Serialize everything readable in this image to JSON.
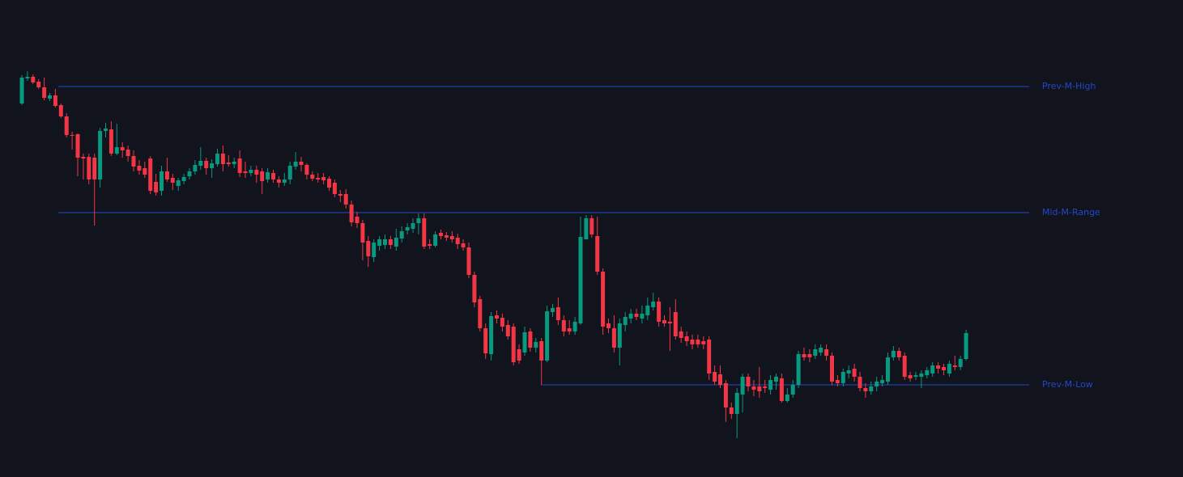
{
  "chart_data": {
    "type": "candlestick",
    "up_color": "#089981",
    "down_color": "#f23645",
    "ylim": [
      0,
      590
    ],
    "ohlc": [
      [
        462,
        497,
        460,
        494
      ],
      [
        493,
        502,
        490,
        495
      ],
      [
        495,
        498,
        486,
        488
      ],
      [
        489,
        492,
        480,
        482
      ],
      [
        482,
        494,
        466,
        469
      ],
      [
        468,
        475,
        465,
        472
      ],
      [
        472,
        480,
        457,
        459
      ],
      [
        460,
        462,
        444,
        446
      ],
      [
        446,
        450,
        420,
        423
      ],
      [
        423,
        427,
        405,
        422
      ],
      [
        424,
        425,
        372,
        395
      ],
      [
        396,
        400,
        368,
        394
      ],
      [
        396,
        400,
        362,
        368
      ],
      [
        395,
        400,
        311,
        368
      ],
      [
        368,
        432,
        358,
        428
      ],
      [
        428,
        438,
        420,
        431
      ],
      [
        430,
        440,
        397,
        400
      ],
      [
        400,
        437,
        398,
        408
      ],
      [
        408,
        414,
        395,
        404
      ],
      [
        405,
        410,
        390,
        397
      ],
      [
        397,
        404,
        378,
        384
      ],
      [
        385,
        392,
        374,
        379
      ],
      [
        382,
        390,
        370,
        374
      ],
      [
        394,
        397,
        350,
        354
      ],
      [
        365,
        375,
        348,
        352
      ],
      [
        354,
        385,
        348,
        378
      ],
      [
        378,
        395,
        365,
        368
      ],
      [
        370,
        375,
        355,
        364
      ],
      [
        360,
        370,
        354,
        367
      ],
      [
        366,
        375,
        362,
        371
      ],
      [
        372,
        382,
        368,
        378
      ],
      [
        378,
        392,
        374,
        386
      ],
      [
        385,
        408,
        380,
        391
      ],
      [
        391,
        395,
        374,
        382
      ],
      [
        382,
        393,
        370,
        388
      ],
      [
        387,
        406,
        384,
        400
      ],
      [
        400,
        410,
        378,
        387
      ],
      [
        389,
        398,
        384,
        387
      ],
      [
        387,
        395,
        382,
        390
      ],
      [
        394,
        404,
        371,
        376
      ],
      [
        378,
        390,
        370,
        376
      ],
      [
        376,
        385,
        372,
        380
      ],
      [
        380,
        385,
        364,
        374
      ],
      [
        378,
        382,
        350,
        366
      ],
      [
        368,
        382,
        364,
        377
      ],
      [
        376,
        380,
        364,
        368
      ],
      [
        368,
        372,
        358,
        364
      ],
      [
        364,
        376,
        360,
        368
      ],
      [
        368,
        390,
        362,
        385
      ],
      [
        384,
        402,
        380,
        390
      ],
      [
        390,
        396,
        378,
        386
      ],
      [
        386,
        388,
        368,
        374
      ],
      [
        374,
        378,
        366,
        369
      ],
      [
        370,
        376,
        364,
        368
      ],
      [
        371,
        376,
        362,
        367
      ],
      [
        369,
        372,
        354,
        358
      ],
      [
        364,
        368,
        346,
        350
      ],
      [
        350,
        355,
        340,
        348
      ],
      [
        350,
        356,
        332,
        337
      ],
      [
        337,
        342,
        310,
        315
      ],
      [
        322,
        328,
        308,
        314
      ],
      [
        314,
        318,
        268,
        290
      ],
      [
        292,
        298,
        260,
        273
      ],
      [
        272,
        294,
        266,
        290
      ],
      [
        286,
        298,
        280,
        294
      ],
      [
        287,
        300,
        282,
        294
      ],
      [
        294,
        298,
        282,
        287
      ],
      [
        285,
        307,
        280,
        296
      ],
      [
        295,
        310,
        290,
        304
      ],
      [
        305,
        314,
        300,
        309
      ],
      [
        307,
        320,
        302,
        314
      ],
      [
        314,
        326,
        300,
        320
      ],
      [
        320,
        326,
        282,
        285
      ],
      [
        288,
        294,
        282,
        286
      ],
      [
        286,
        304,
        284,
        300
      ],
      [
        302,
        306,
        294,
        298
      ],
      [
        299,
        303,
        292,
        296
      ],
      [
        298,
        304,
        290,
        294
      ],
      [
        296,
        301,
        282,
        288
      ],
      [
        289,
        294,
        280,
        284
      ],
      [
        284,
        290,
        246,
        250
      ],
      [
        250,
        254,
        210,
        216
      ],
      [
        220,
        224,
        180,
        184
      ],
      [
        184,
        190,
        146,
        153
      ],
      [
        152,
        204,
        144,
        199
      ],
      [
        200,
        206,
        190,
        196
      ],
      [
        197,
        202,
        180,
        186
      ],
      [
        188,
        194,
        170,
        174
      ],
      [
        186,
        190,
        138,
        142
      ],
      [
        158,
        164,
        140,
        144
      ],
      [
        154,
        186,
        150,
        179
      ],
      [
        180,
        184,
        155,
        160
      ],
      [
        160,
        172,
        154,
        167
      ],
      [
        168,
        172,
        114,
        144
      ],
      [
        144,
        212,
        142,
        205
      ],
      [
        204,
        214,
        198,
        209
      ],
      [
        210,
        222,
        188,
        194
      ],
      [
        194,
        200,
        174,
        180
      ],
      [
        184,
        194,
        176,
        180
      ],
      [
        180,
        198,
        176,
        192
      ],
      [
        190,
        322,
        188,
        297
      ],
      [
        294,
        324,
        294,
        320
      ],
      [
        320,
        324,
        296,
        300
      ],
      [
        298,
        322,
        250,
        254
      ],
      [
        254,
        258,
        176,
        186
      ],
      [
        190,
        196,
        178,
        184
      ],
      [
        184,
        200,
        154,
        160
      ],
      [
        160,
        196,
        138,
        190
      ],
      [
        188,
        204,
        180,
        198
      ],
      [
        196,
        208,
        190,
        202
      ],
      [
        202,
        208,
        194,
        198
      ],
      [
        196,
        212,
        190,
        202
      ],
      [
        200,
        222,
        194,
        212
      ],
      [
        210,
        228,
        206,
        217
      ],
      [
        217,
        222,
        186,
        192
      ],
      [
        194,
        200,
        186,
        190
      ],
      [
        192,
        210,
        156,
        190
      ],
      [
        204,
        220,
        170,
        174
      ],
      [
        180,
        186,
        166,
        172
      ],
      [
        174,
        180,
        162,
        168
      ],
      [
        170,
        176,
        158,
        164
      ],
      [
        170,
        176,
        160,
        164
      ],
      [
        168,
        174,
        158,
        164
      ],
      [
        170,
        174,
        120,
        128
      ],
      [
        130,
        138,
        114,
        118
      ],
      [
        127,
        138,
        110,
        114
      ],
      [
        116,
        120,
        68,
        86
      ],
      [
        86,
        92,
        72,
        78
      ],
      [
        78,
        110,
        48,
        104
      ],
      [
        102,
        128,
        80,
        124
      ],
      [
        124,
        128,
        106,
        112
      ],
      [
        112,
        120,
        100,
        108
      ],
      [
        112,
        136,
        98,
        106
      ],
      [
        112,
        120,
        104,
        110
      ],
      [
        108,
        126,
        102,
        120
      ],
      [
        118,
        128,
        108,
        124
      ],
      [
        122,
        128,
        92,
        94
      ],
      [
        94,
        110,
        92,
        102
      ],
      [
        102,
        120,
        98,
        114
      ],
      [
        114,
        156,
        110,
        152
      ],
      [
        152,
        160,
        144,
        148
      ],
      [
        152,
        158,
        142,
        148
      ],
      [
        150,
        164,
        146,
        158
      ],
      [
        154,
        164,
        150,
        160
      ],
      [
        158,
        164,
        144,
        150
      ],
      [
        150,
        154,
        114,
        118
      ],
      [
        120,
        126,
        112,
        116
      ],
      [
        116,
        134,
        112,
        130
      ],
      [
        128,
        138,
        122,
        132
      ],
      [
        134,
        140,
        118,
        124
      ],
      [
        124,
        130,
        106,
        110
      ],
      [
        110,
        116,
        98,
        106
      ],
      [
        106,
        118,
        102,
        112
      ],
      [
        112,
        124,
        106,
        118
      ],
      [
        116,
        126,
        112,
        120
      ],
      [
        118,
        154,
        114,
        148
      ],
      [
        148,
        162,
        144,
        156
      ],
      [
        156,
        160,
        144,
        148
      ],
      [
        150,
        154,
        120,
        124
      ],
      [
        126,
        130,
        118,
        122
      ],
      [
        124,
        130,
        120,
        126
      ],
      [
        124,
        132,
        110,
        128
      ],
      [
        126,
        136,
        122,
        132
      ],
      [
        128,
        142,
        124,
        138
      ],
      [
        138,
        142,
        128,
        134
      ],
      [
        136,
        140,
        126,
        132
      ],
      [
        128,
        144,
        124,
        140
      ],
      [
        138,
        150,
        132,
        136
      ],
      [
        136,
        150,
        132,
        146
      ],
      [
        146,
        182,
        144,
        178
      ]
    ],
    "levels": [
      {
        "name": "Prev-M-High",
        "value": 483,
        "color": "#2447c9"
      },
      {
        "name": "Mid-M-Range",
        "value": 327,
        "color": "#2447c9"
      },
      {
        "name": "Prev-M-Low",
        "value": 114,
        "color": "#2447c9"
      }
    ]
  }
}
